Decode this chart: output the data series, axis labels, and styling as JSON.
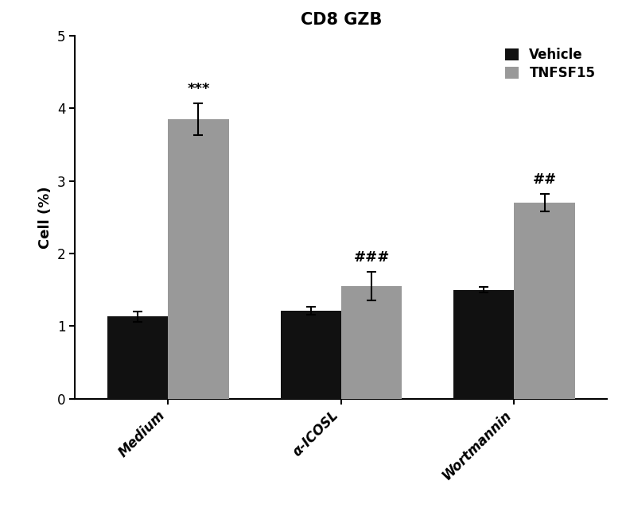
{
  "title": "CD8 GZB",
  "ylabel": "Cell (%)",
  "categories": [
    "Medium",
    "α-ICOSL",
    "Wortmannin"
  ],
  "vehicle_values": [
    1.13,
    1.21,
    1.5
  ],
  "vehicle_errors": [
    0.07,
    0.05,
    0.04
  ],
  "tnfsf15_values": [
    3.85,
    1.55,
    2.7
  ],
  "tnfsf15_errors": [
    0.22,
    0.2,
    0.12
  ],
  "vehicle_color": "#111111",
  "tnfsf15_color": "#999999",
  "ylim": [
    0,
    5
  ],
  "yticks": [
    0,
    1,
    2,
    3,
    4,
    5
  ],
  "bar_width": 0.28,
  "group_centers": [
    0.35,
    1.15,
    1.95
  ],
  "legend_labels": [
    "Vehicle",
    "TNFSF15"
  ],
  "annotations": {
    "medium_tnfsf15": "***",
    "icosl_tnfsf15": "###",
    "wort_tnfsf15": "##"
  },
  "title_fontsize": 15,
  "label_fontsize": 13,
  "tick_fontsize": 12,
  "legend_fontsize": 12,
  "annot_fontsize": 13,
  "xlabel_rotation": 45,
  "background_color": "#ffffff"
}
